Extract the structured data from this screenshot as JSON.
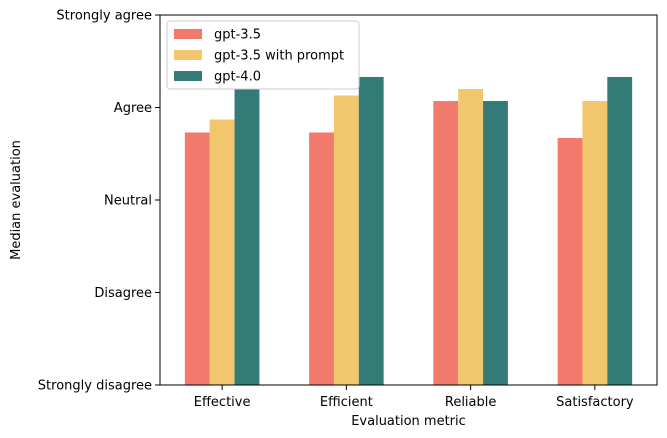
{
  "chart_data": {
    "type": "bar",
    "categories": [
      "Effective",
      "Efficient",
      "Reliable",
      "Satisfactory"
    ],
    "series": [
      {
        "name": "gpt-3.5",
        "color": "#f27a6d",
        "values": [
          3.73,
          3.73,
          4.07,
          3.67
        ]
      },
      {
        "name": "gpt-3.5 with prompt",
        "color": "#f2c66d",
        "values": [
          3.87,
          4.13,
          4.2,
          4.07
        ]
      },
      {
        "name": "gpt-4.0",
        "color": "#347b78",
        "values": [
          4.2,
          4.33,
          4.07,
          4.33
        ]
      }
    ],
    "xlabel": "Evaluation metric",
    "ylabel": "Median evaluation",
    "ylim": [
      1,
      5
    ],
    "yticks": [
      {
        "value": 1,
        "label": "Strongly disagree"
      },
      {
        "value": 2,
        "label": "Disagree"
      },
      {
        "value": 3,
        "label": "Neutral"
      },
      {
        "value": 4,
        "label": "Agree"
      },
      {
        "value": 5,
        "label": "Strongly agree"
      }
    ],
    "legend_position": "top-left",
    "grid": false
  }
}
